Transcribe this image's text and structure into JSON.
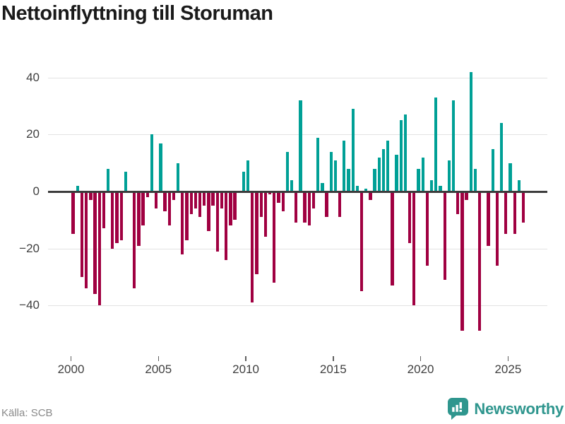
{
  "title": "Nettoinflyttning till Storuman",
  "source": "Källa: SCB",
  "brand": {
    "name": "Newsworthy"
  },
  "colors": {
    "positive": "#00A096",
    "negative": "#A00041",
    "grid": "#E3E3E3",
    "zero_line": "#3C3C3C",
    "axis_text": "#3F3F3F",
    "source_text": "#8A8A8A",
    "brand_teal": "#2F968E"
  },
  "chart_data": {
    "type": "bar",
    "title": "Nettoinflyttning till Storuman",
    "freq": "quarterly",
    "grid": true,
    "legend": "none",
    "ylim": [
      -52,
      45
    ],
    "y_ticks": [
      {
        "v": 40,
        "label": "40"
      },
      {
        "v": 20,
        "label": "20"
      },
      {
        "v": 0,
        "label": "0"
      },
      {
        "v": -20,
        "label": "−20"
      },
      {
        "v": -40,
        "label": "−40"
      }
    ],
    "x_tick_years": [
      2000,
      2005,
      2010,
      2015,
      2020,
      2025
    ],
    "series_by_year": [
      {
        "year": 2000,
        "values": [
          -15,
          2,
          -30,
          -34
        ]
      },
      {
        "year": 2001,
        "values": [
          -3,
          -36,
          -40,
          -13
        ]
      },
      {
        "year": 2002,
        "values": [
          8,
          -20,
          -18,
          -17
        ]
      },
      {
        "year": 2003,
        "values": [
          7,
          0,
          -34,
          -19
        ]
      },
      {
        "year": 2004,
        "values": [
          -12,
          -2,
          20,
          -6
        ]
      },
      {
        "year": 2005,
        "values": [
          17,
          -7,
          -12,
          -3
        ]
      },
      {
        "year": 2006,
        "values": [
          10,
          -22,
          -17,
          -8
        ]
      },
      {
        "year": 2007,
        "values": [
          -6,
          -9,
          -5,
          -14
        ]
      },
      {
        "year": 2008,
        "values": [
          -5,
          -21,
          -6,
          -24
        ]
      },
      {
        "year": 2009,
        "values": [
          -12,
          -10,
          0,
          7
        ]
      },
      {
        "year": 2010,
        "values": [
          11,
          -39,
          -29,
          -9
        ]
      },
      {
        "year": 2011,
        "values": [
          -16,
          -1,
          -32,
          -4
        ]
      },
      {
        "year": 2012,
        "values": [
          -7,
          14,
          4,
          -11
        ]
      },
      {
        "year": 2013,
        "values": [
          32,
          -11,
          -12,
          -6
        ]
      },
      {
        "year": 2014,
        "values": [
          19,
          3,
          -9,
          14
        ]
      },
      {
        "year": 2015,
        "values": [
          11,
          -9,
          18,
          8
        ]
      },
      {
        "year": 2016,
        "values": [
          29,
          2,
          -35,
          1
        ]
      },
      {
        "year": 2017,
        "values": [
          -3,
          8,
          12,
          15
        ]
      },
      {
        "year": 2018,
        "values": [
          18,
          -33,
          13,
          25
        ]
      },
      {
        "year": 2019,
        "values": [
          27,
          -18,
          -40,
          8
        ]
      },
      {
        "year": 2020,
        "values": [
          12,
          -26,
          4,
          33
        ]
      },
      {
        "year": 2021,
        "values": [
          2,
          -31,
          11,
          32
        ]
      },
      {
        "year": 2022,
        "values": [
          -8,
          -49,
          -3,
          42
        ]
      },
      {
        "year": 2023,
        "values": [
          8,
          -49,
          0,
          -19
        ]
      },
      {
        "year": 2024,
        "values": [
          15,
          -26,
          24,
          -15
        ]
      },
      {
        "year": 2025,
        "values": [
          10,
          -15,
          4,
          -11
        ]
      }
    ]
  }
}
